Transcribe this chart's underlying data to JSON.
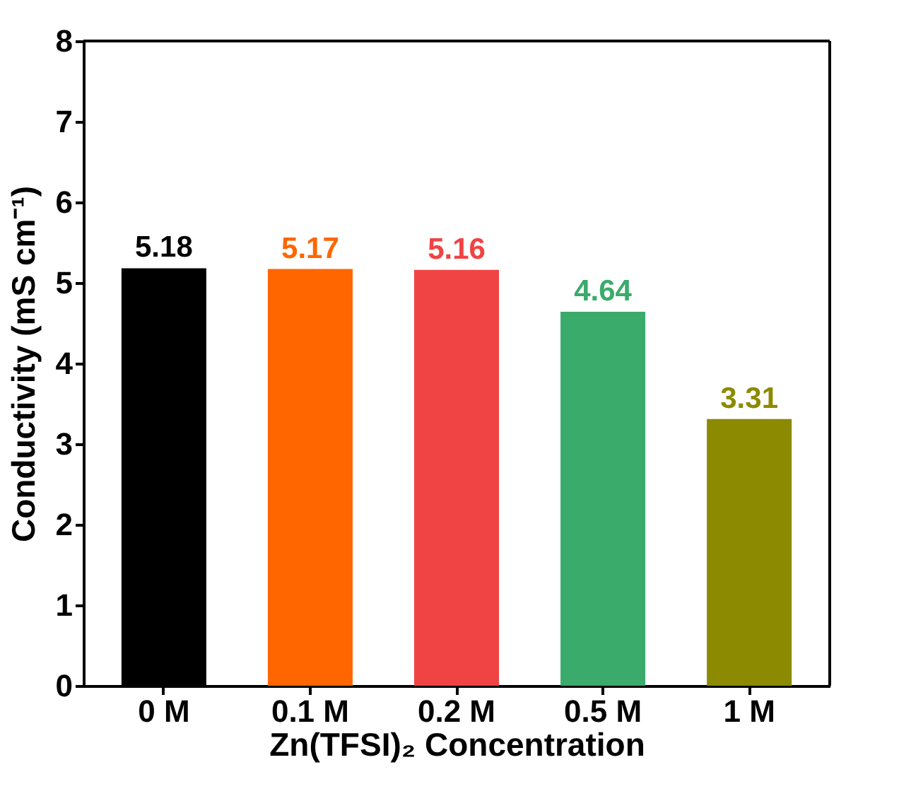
{
  "chart_data": {
    "type": "bar",
    "xlabel": "Zn(TFSI)₂ Concentration",
    "ylabel": "Conductivity (mS cm⁻¹)",
    "categories": [
      "0 M",
      "0.1 M",
      "0.2 M",
      "0.5 M",
      "1 M"
    ],
    "values": [
      5.18,
      5.17,
      5.16,
      4.64,
      3.31
    ],
    "colors": [
      "#000000",
      "#ff6600",
      "#f04343",
      "#3aab6b",
      "#8c8a00"
    ],
    "ylim": [
      0,
      8
    ],
    "yticks": [
      0,
      1,
      2,
      3,
      4,
      5,
      6,
      7,
      8
    ],
    "data_labels": true,
    "grid": false
  }
}
